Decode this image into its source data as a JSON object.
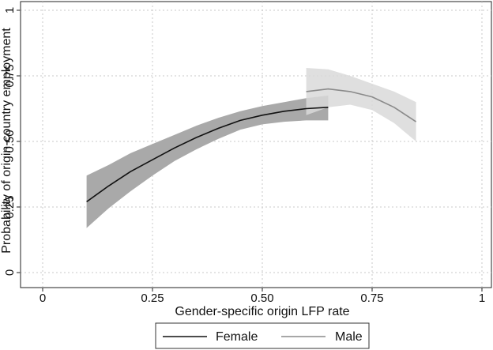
{
  "chart_data": {
    "type": "line",
    "title": "",
    "xlabel": "Gender-specific origin LFP rate",
    "ylabel": "Probability of origin-country employment",
    "xlim": [
      0,
      1
    ],
    "ylim": [
      0,
      1
    ],
    "x_ticks": [
      0,
      0.25,
      0.5,
      0.75,
      1
    ],
    "x_tick_labels": [
      "0",
      "0.25",
      "0.50",
      "0.75",
      "1"
    ],
    "y_ticks": [
      0,
      0.25,
      0.5,
      0.75,
      1
    ],
    "y_tick_labels": [
      "0",
      "0.25",
      "0.50",
      "0.75",
      "1"
    ],
    "grid": true,
    "legend_position": "bottom",
    "series": [
      {
        "name": "Female",
        "color": "#111111",
        "band_color": "#a9a9a9",
        "x": [
          0.1,
          0.15,
          0.2,
          0.25,
          0.3,
          0.35,
          0.4,
          0.45,
          0.5,
          0.55,
          0.6,
          0.65
        ],
        "y": [
          0.27,
          0.33,
          0.385,
          0.43,
          0.475,
          0.515,
          0.55,
          0.58,
          0.6,
          0.615,
          0.625,
          0.63
        ],
        "lower": [
          0.17,
          0.245,
          0.31,
          0.37,
          0.425,
          0.47,
          0.51,
          0.545,
          0.565,
          0.575,
          0.58,
          0.58
        ],
        "upper": [
          0.37,
          0.41,
          0.455,
          0.49,
          0.525,
          0.56,
          0.59,
          0.615,
          0.635,
          0.65,
          0.665,
          0.675
        ]
      },
      {
        "name": "Male",
        "color": "#8a8a8a",
        "band_color": "#d9d9d9",
        "x": [
          0.6,
          0.65,
          0.7,
          0.75,
          0.8,
          0.85
        ],
        "y": [
          0.69,
          0.7,
          0.69,
          0.67,
          0.63,
          0.575
        ],
        "lower": [
          0.6,
          0.63,
          0.64,
          0.62,
          0.57,
          0.5
        ],
        "upper": [
          0.78,
          0.775,
          0.75,
          0.72,
          0.69,
          0.65
        ]
      }
    ]
  }
}
